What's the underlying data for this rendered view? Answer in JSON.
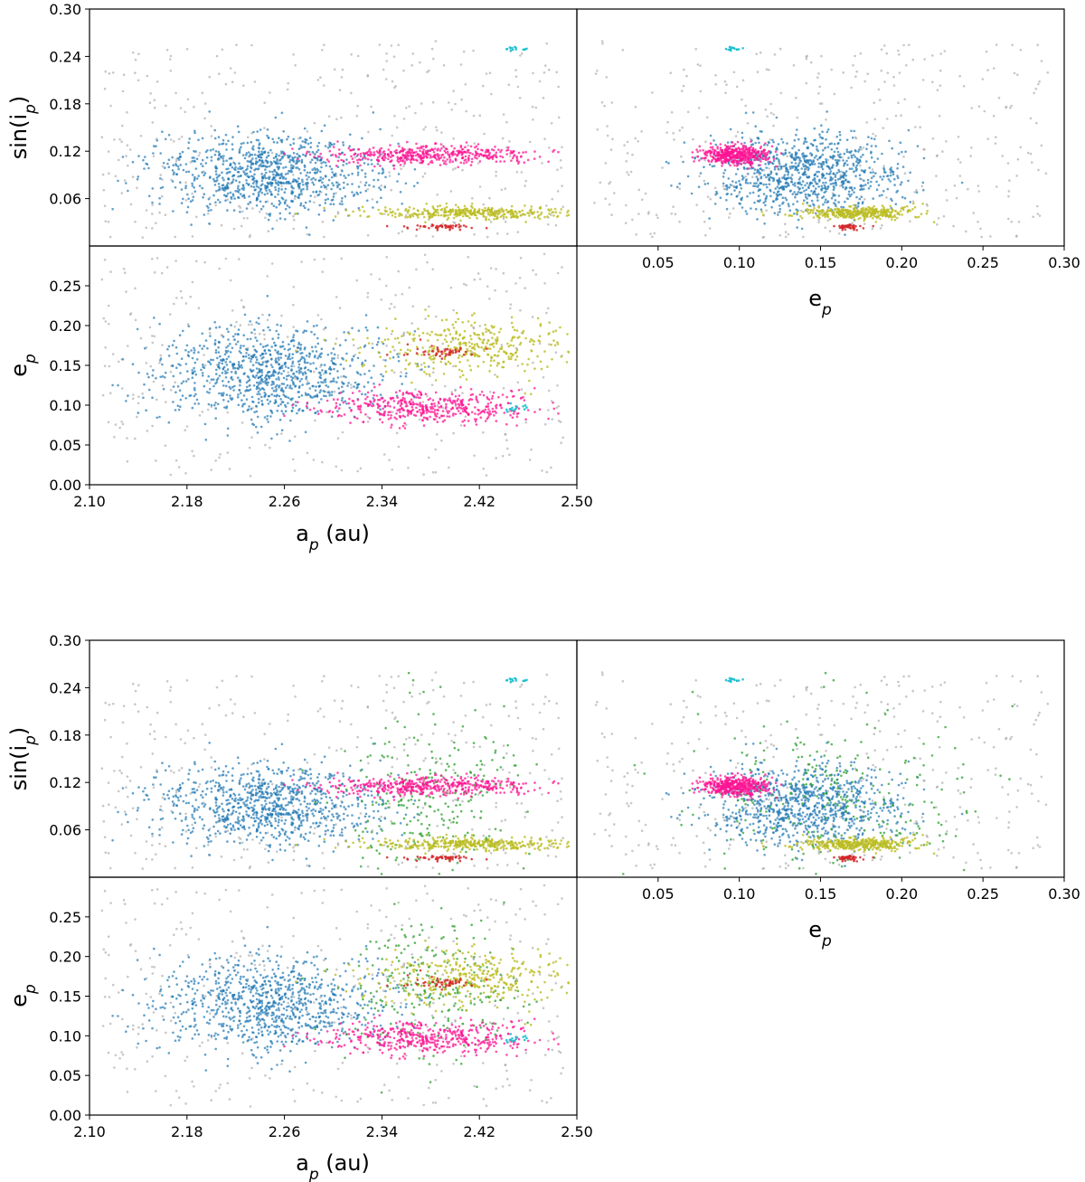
{
  "chart_data": [
    {
      "type": "scatter",
      "panel": "top figure, upper-left",
      "xlabel": "",
      "ylabel": "sin(i_p)",
      "xlim": [
        2.1,
        2.5
      ],
      "ylim": [
        0.0,
        0.3
      ],
      "xticks": [],
      "yticks": [
        "0.06",
        "0.12",
        "0.18",
        "0.24",
        "0.30"
      ],
      "x_var": "a",
      "y_var": "s",
      "groups": [
        "background",
        "blue",
        "magenta",
        "olive",
        "red",
        "cyan"
      ]
    },
    {
      "type": "scatter",
      "panel": "top figure, upper-right",
      "xlabel": "e_p",
      "ylabel": "",
      "xlim": [
        0.0,
        0.3
      ],
      "ylim": [
        0.0,
        0.3
      ],
      "xticks": [
        "0.05",
        "0.10",
        "0.15",
        "0.20",
        "0.25",
        "0.30"
      ],
      "yticks": [],
      "x_var": "e",
      "y_var": "s",
      "groups": [
        "background",
        "blue",
        "magenta",
        "olive",
        "red",
        "cyan"
      ]
    },
    {
      "type": "scatter",
      "panel": "top figure, lower-left",
      "xlabel": "a_p (au)",
      "ylabel": "e_p",
      "xlim": [
        2.1,
        2.5
      ],
      "ylim": [
        0.0,
        0.3
      ],
      "xticks": [
        "2.10",
        "2.18",
        "2.26",
        "2.34",
        "2.42",
        "2.50"
      ],
      "yticks": [
        "0.00",
        "0.05",
        "0.10",
        "0.15",
        "0.20",
        "0.25"
      ],
      "x_var": "a",
      "y_var": "e",
      "groups": [
        "background",
        "blue",
        "magenta",
        "olive",
        "red",
        "cyan"
      ]
    },
    {
      "type": "scatter",
      "panel": "bottom figure, upper-left",
      "xlabel": "",
      "ylabel": "sin(i_p)",
      "xlim": [
        2.1,
        2.5
      ],
      "ylim": [
        0.0,
        0.3
      ],
      "xticks": [],
      "yticks": [
        "0.06",
        "0.12",
        "0.18",
        "0.24",
        "0.30"
      ],
      "x_var": "a",
      "y_var": "s",
      "groups": [
        "background",
        "blue",
        "green",
        "magenta",
        "olive",
        "red",
        "cyan"
      ]
    },
    {
      "type": "scatter",
      "panel": "bottom figure, upper-right",
      "xlabel": "e_p",
      "ylabel": "",
      "xlim": [
        0.0,
        0.3
      ],
      "ylim": [
        0.0,
        0.3
      ],
      "xticks": [
        "0.05",
        "0.10",
        "0.15",
        "0.20",
        "0.25",
        "0.30"
      ],
      "yticks": [],
      "x_var": "e",
      "y_var": "s",
      "groups": [
        "background",
        "blue",
        "green",
        "magenta",
        "olive",
        "red",
        "cyan"
      ]
    },
    {
      "type": "scatter",
      "panel": "bottom figure, lower-left",
      "xlabel": "a_p (au)",
      "ylabel": "e_p",
      "xlim": [
        2.1,
        2.5
      ],
      "ylim": [
        0.0,
        0.3
      ],
      "xticks": [
        "2.10",
        "2.18",
        "2.26",
        "2.34",
        "2.42",
        "2.50"
      ],
      "yticks": [
        "0.00",
        "0.05",
        "0.10",
        "0.15",
        "0.20",
        "0.25"
      ],
      "x_var": "a",
      "y_var": "e",
      "groups": [
        "background",
        "blue",
        "green",
        "magenta",
        "olive",
        "red",
        "cyan"
      ]
    }
  ],
  "groups": {
    "background": {
      "color": "#999999",
      "alpha": 0.55,
      "count": 360,
      "a": [
        2.11,
        2.49
      ],
      "e": [
        0.01,
        0.29
      ],
      "s": [
        0.01,
        0.26
      ],
      "sampling": "uniform"
    },
    "blue": {
      "color": "#1f77b4",
      "alpha": 0.7,
      "count": 900,
      "a_mean": 2.25,
      "a_sd": 0.045,
      "e_mean": 0.14,
      "e_sd": 0.03,
      "s_mean": 0.09,
      "s_sd": 0.025
    },
    "green": {
      "color": "#2ca02c",
      "alpha": 0.75,
      "count": 260,
      "a_mean": 2.38,
      "a_sd": 0.04,
      "e_mean": 0.16,
      "e_sd": 0.045,
      "s_mean": 0.1,
      "s_sd": 0.05
    },
    "magenta": {
      "color": "#ff1493",
      "alpha": 0.75,
      "count": 450,
      "a_mean": 2.38,
      "a_sd": 0.045,
      "e_mean": 0.098,
      "e_sd": 0.01,
      "s_mean": 0.115,
      "s_sd": 0.006
    },
    "olive": {
      "color": "#bcbd22",
      "alpha": 0.8,
      "count": 360,
      "a_mean": 2.41,
      "a_sd": 0.04,
      "e_mean": 0.175,
      "e_sd": 0.018,
      "s_mean": 0.042,
      "s_sd": 0.004
    },
    "red": {
      "color": "#d62728",
      "alpha": 0.85,
      "count": 50,
      "a_mean": 2.39,
      "a_sd": 0.014,
      "e_mean": 0.168,
      "e_sd": 0.005,
      "s_mean": 0.024,
      "s_sd": 0.0015
    },
    "cyan": {
      "color": "#17becf",
      "alpha": 0.9,
      "count": 14,
      "a_mean": 2.45,
      "a_sd": 0.006,
      "e_mean": 0.097,
      "e_sd": 0.003,
      "s_mean": 0.25,
      "s_sd": 0.001
    }
  }
}
